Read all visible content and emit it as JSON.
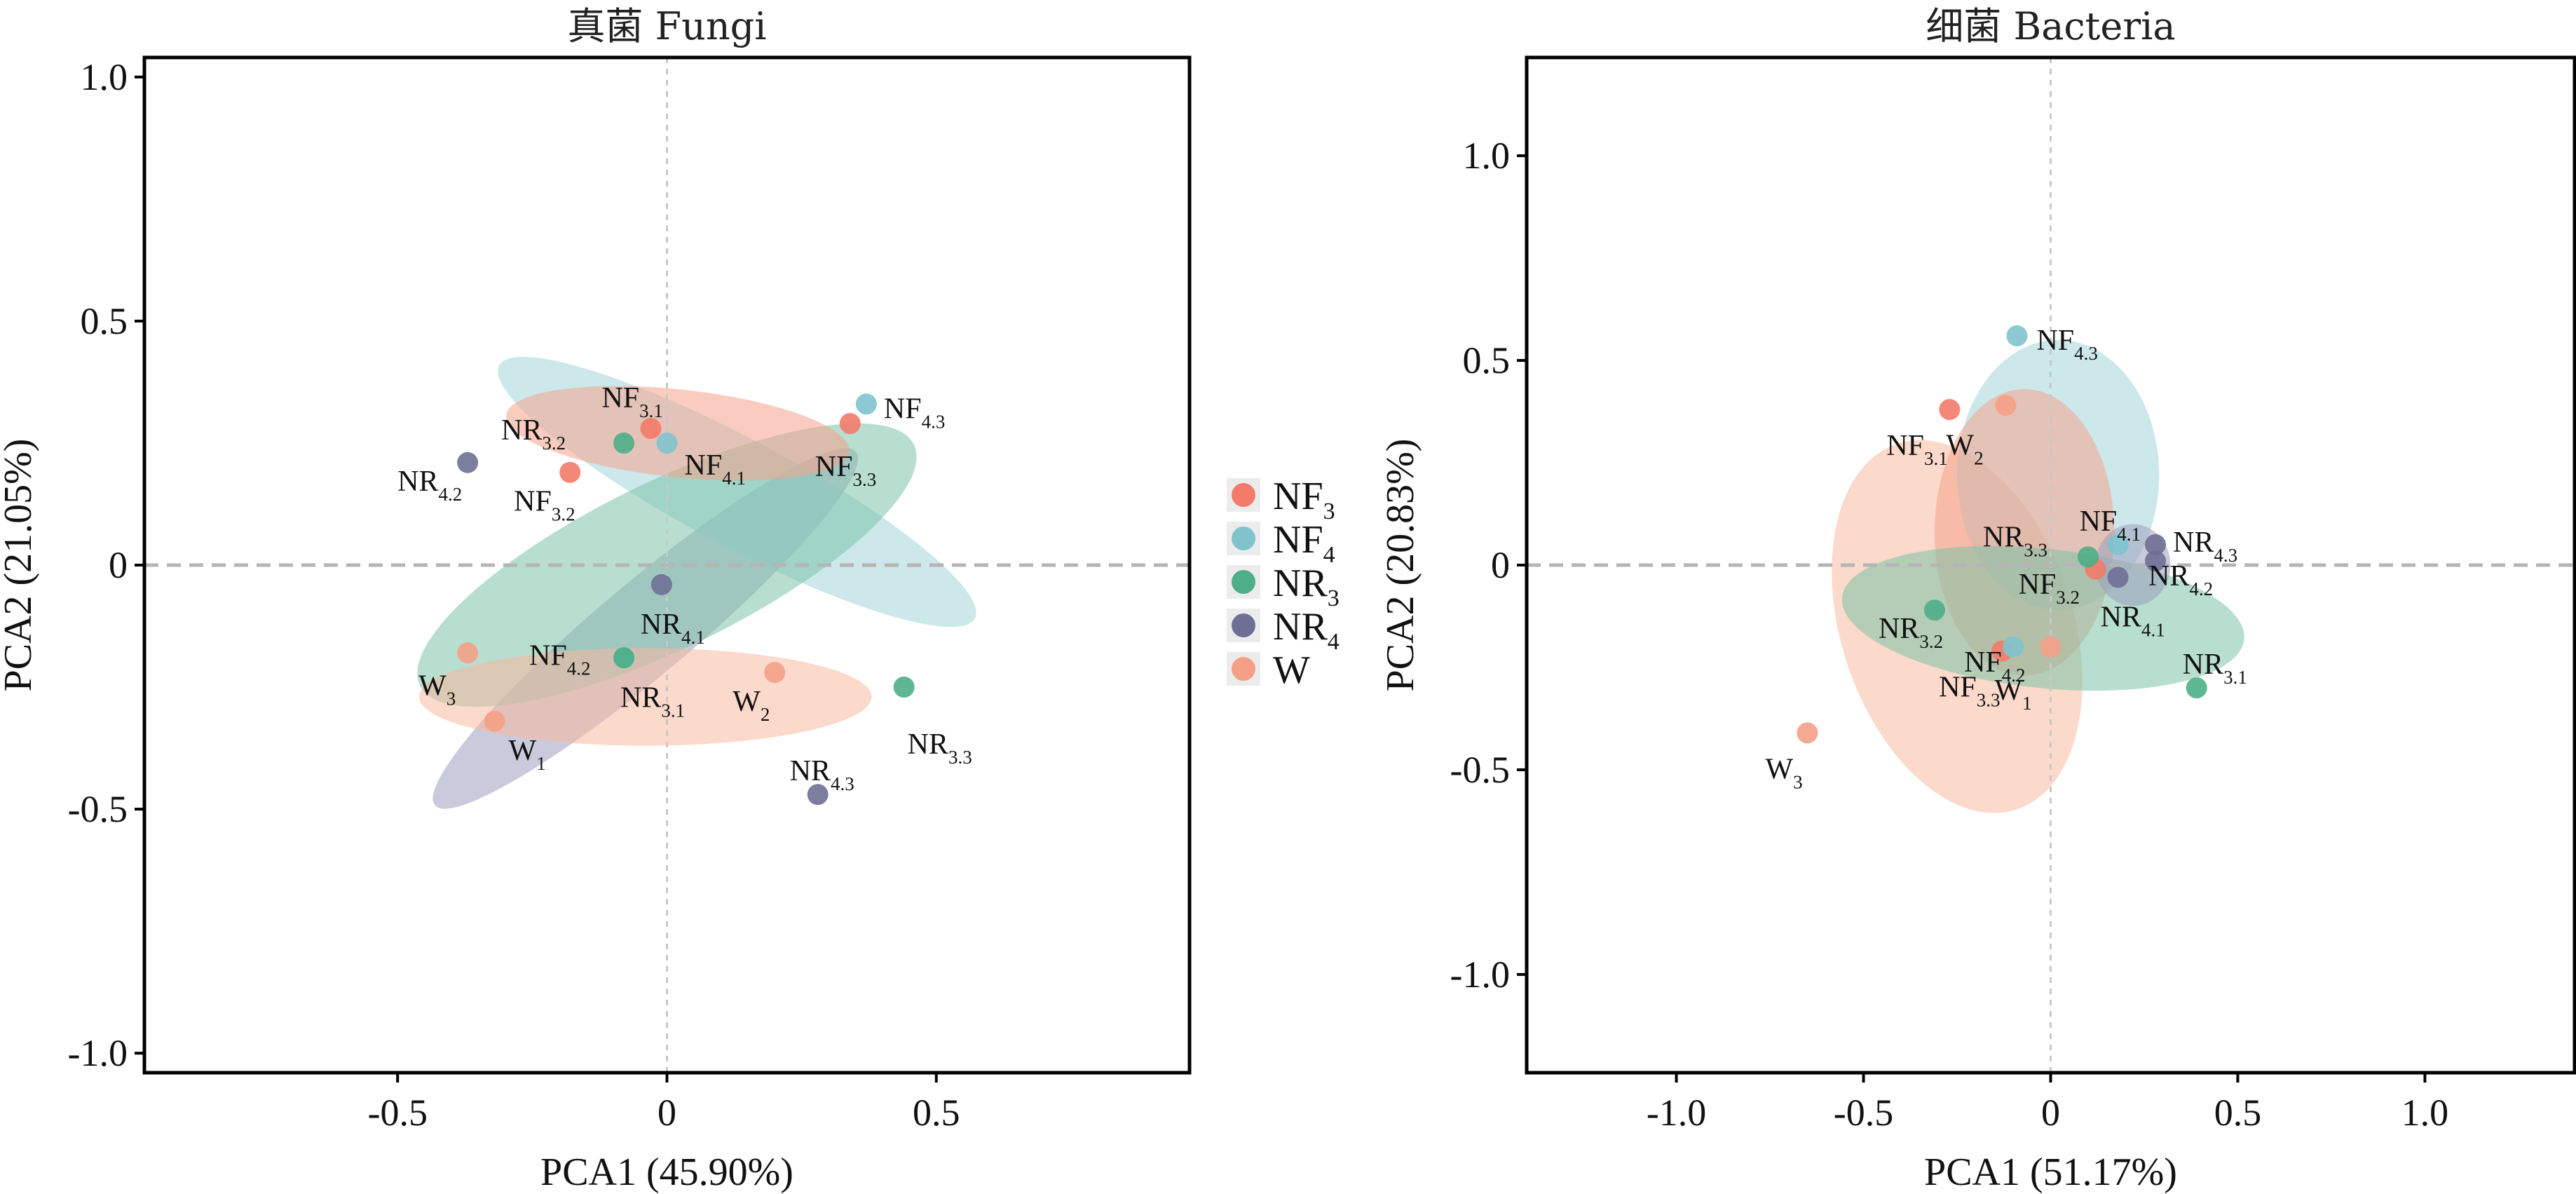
{
  "chart_data": [
    {
      "type": "scatter",
      "title": "真菌 Fungi",
      "xlabel": "PCA1 (45.90%)",
      "ylabel": "PCA2 (21.05%)",
      "xlim": [
        -0.97,
        0.97
      ],
      "ylim": [
        -1.04,
        1.04
      ],
      "xticks": [
        -0.5,
        0,
        0.5
      ],
      "xtick_labels": [
        "-0.5",
        "0",
        "0.5"
      ],
      "yticks": [
        -1.0,
        -0.5,
        0,
        0.5,
        1.0
      ],
      "ytick_labels": [
        "-1.0",
        "-0.5",
        "0",
        "0.5",
        "1.0"
      ],
      "ellipses": [
        {
          "group": "NR4",
          "cx": -0.04,
          "cy": -0.13,
          "rx": 0.51,
          "ry": 0.095,
          "angle": 40
        },
        {
          "group": "NF4",
          "cx": 0.13,
          "cy": 0.15,
          "rx": 0.5,
          "ry": 0.11,
          "angle": -28
        },
        {
          "group": "NR3",
          "cx": 0.0,
          "cy": 0.0,
          "rx": 0.51,
          "ry": 0.17,
          "angle": 26
        },
        {
          "group": "NF3",
          "cx": 0.02,
          "cy": 0.27,
          "rx": 0.32,
          "ry": 0.09,
          "angle": -6
        },
        {
          "group": "W",
          "cx": -0.04,
          "cy": -0.27,
          "rx": 0.42,
          "ry": 0.1,
          "angle": 0
        }
      ],
      "points": [
        {
          "group": "NF3",
          "base": "NF",
          "sub": "3.1",
          "x": -0.03,
          "y": 0.28
        },
        {
          "group": "NF3",
          "base": "NF",
          "sub": "3.2",
          "x": -0.18,
          "y": 0.19
        },
        {
          "group": "NF3",
          "base": "NF",
          "sub": "3.3",
          "x": 0.34,
          "y": 0.29
        },
        {
          "group": "NF4",
          "base": "NF",
          "sub": "4.1",
          "x": 0.0,
          "y": 0.25
        },
        {
          "group": "NF4",
          "base": "NF",
          "sub": "4.2",
          "x": -0.08,
          "y": -0.19
        },
        {
          "group": "NF4",
          "base": "NF",
          "sub": "4.3",
          "x": 0.37,
          "y": 0.33
        },
        {
          "group": "NR3",
          "base": "NR",
          "sub": "3.1",
          "x": -0.08,
          "y": -0.19
        },
        {
          "group": "NR3",
          "base": "NR",
          "sub": "3.2",
          "x": -0.08,
          "y": 0.25
        },
        {
          "group": "NR3",
          "base": "NR",
          "sub": "3.3",
          "x": 0.44,
          "y": -0.25
        },
        {
          "group": "NR4",
          "base": "NR",
          "sub": "4.1",
          "x": -0.01,
          "y": -0.04
        },
        {
          "group": "NR4",
          "base": "NR",
          "sub": "4.2",
          "x": -0.37,
          "y": 0.21
        },
        {
          "group": "NR4",
          "base": "NR",
          "sub": "4.3",
          "x": 0.28,
          "y": -0.47
        },
        {
          "group": "W",
          "base": "W",
          "sub": "1",
          "x": -0.32,
          "y": -0.32
        },
        {
          "group": "W",
          "base": "W",
          "sub": "2",
          "x": 0.2,
          "y": -0.22
        },
        {
          "group": "W",
          "base": "W",
          "sub": "3",
          "x": -0.37,
          "y": -0.18
        }
      ]
    },
    {
      "type": "scatter",
      "title": "细菌 Bacteria",
      "xlabel": "PCA1 (51.17%)",
      "ylabel": "PCA2 (20.83%)",
      "xlim": [
        -1.4,
        1.4
      ],
      "ylim": [
        -1.24,
        1.24
      ],
      "xticks": [
        -1.0,
        -0.5,
        0,
        0.5,
        1.0
      ],
      "xtick_labels": [
        "-1.0",
        "-0.5",
        "0",
        "0.5",
        "1.0"
      ],
      "yticks": [
        -1.0,
        -0.5,
        0,
        0.5,
        1.0
      ],
      "ytick_labels": [
        "-1.0",
        "-0.5",
        "0",
        "0.5",
        "1.0"
      ],
      "ellipses": [
        {
          "group": "W",
          "cx": -0.25,
          "cy": -0.15,
          "rx": 0.31,
          "ry": 0.47,
          "angle": 18
        },
        {
          "group": "NF4",
          "cx": 0.02,
          "cy": 0.22,
          "rx": 0.27,
          "ry": 0.33,
          "angle": 0
        },
        {
          "group": "NF3",
          "cx": -0.07,
          "cy": 0.08,
          "rx": 0.24,
          "ry": 0.35,
          "angle": 0
        },
        {
          "group": "NR3",
          "cx": -0.02,
          "cy": -0.13,
          "rx": 0.54,
          "ry": 0.17,
          "angle": -6
        },
        {
          "group": "NR4",
          "cx": 0.22,
          "cy": 0.0,
          "rx": 0.1,
          "ry": 0.1,
          "angle": 0
        }
      ],
      "points": [
        {
          "group": "NF3",
          "base": "NF",
          "sub": "3.1",
          "x": -0.27,
          "y": 0.38
        },
        {
          "group": "NF3",
          "base": "NF",
          "sub": "3.2",
          "x": 0.12,
          "y": -0.01
        },
        {
          "group": "NF3",
          "base": "NF",
          "sub": "3.3",
          "x": -0.13,
          "y": -0.21
        },
        {
          "group": "NF4",
          "base": "NF",
          "sub": "4.1",
          "x": 0.18,
          "y": 0.05
        },
        {
          "group": "NF4",
          "base": "NF",
          "sub": "4.2",
          "x": -0.1,
          "y": -0.2
        },
        {
          "group": "NF4",
          "base": "NF",
          "sub": "4.3",
          "x": -0.09,
          "y": 0.56
        },
        {
          "group": "NR3",
          "base": "NR",
          "sub": "3.1",
          "x": 0.39,
          "y": -0.3
        },
        {
          "group": "NR3",
          "base": "NR",
          "sub": "3.2",
          "x": -0.31,
          "y": -0.11
        },
        {
          "group": "NR3",
          "base": "NR",
          "sub": "3.3",
          "x": 0.1,
          "y": 0.02
        },
        {
          "group": "NR4",
          "base": "NR",
          "sub": "4.1",
          "x": 0.18,
          "y": -0.03
        },
        {
          "group": "NR4",
          "base": "NR",
          "sub": "4.2",
          "x": 0.28,
          "y": 0.01
        },
        {
          "group": "NR4",
          "base": "NR",
          "sub": "4.3",
          "x": 0.28,
          "y": 0.05
        },
        {
          "group": "W",
          "base": "W",
          "sub": "1",
          "x": 0.0,
          "y": -0.2
        },
        {
          "group": "W",
          "base": "W",
          "sub": "2",
          "x": -0.12,
          "y": 0.39
        },
        {
          "group": "W",
          "base": "W",
          "sub": "3",
          "x": -0.65,
          "y": -0.41
        }
      ]
    }
  ],
  "legend": {
    "placement": "center-between-panels",
    "items": [
      {
        "group": "NF3",
        "base": "NF",
        "sub": "3"
      },
      {
        "group": "NF4",
        "base": "NF",
        "sub": "4"
      },
      {
        "group": "NR3",
        "base": "NR",
        "sub": "3"
      },
      {
        "group": "NR4",
        "base": "NR",
        "sub": "4"
      },
      {
        "group": "W",
        "base": "W",
        "sub": ""
      }
    ]
  },
  "colors": {
    "NF3": {
      "ellipse": "#f6a28d",
      "point": "#f27b69"
    },
    "NF4": {
      "ellipse": "#a3d5da",
      "point": "#7fc3cd"
    },
    "NR3": {
      "ellipse": "#7cc3a7",
      "point": "#4eae87"
    },
    "NR4": {
      "ellipse": "#9d9fbd",
      "point": "#6f6f96"
    },
    "W": {
      "ellipse": "#f8b9a1",
      "point": "#f5a086"
    }
  }
}
